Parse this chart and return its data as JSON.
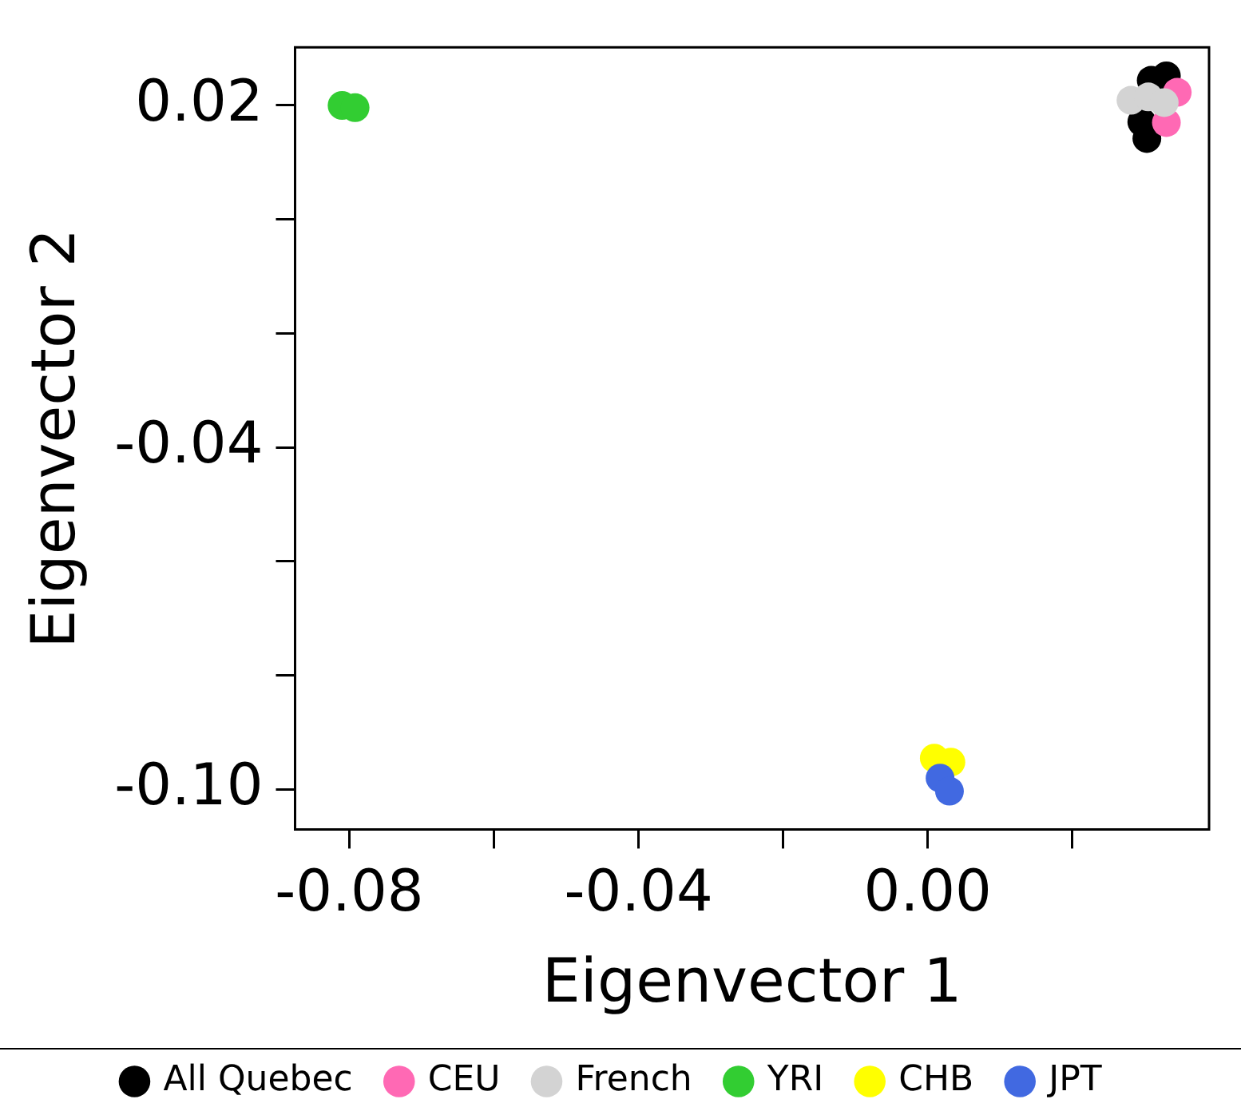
{
  "chart_data": {
    "type": "scatter",
    "xlabel": "Eigenvector 1",
    "ylabel": "Eigenvector 2",
    "marker": "circle",
    "grid": false,
    "legend": "bottom",
    "xlim": [
      -0.0875,
      0.0389
    ],
    "ylim": [
      -0.107,
      0.0302
    ],
    "xticks": [
      -0.08,
      {
        "value": -0.06,
        "label": null
      },
      -0.04,
      {
        "value": -0.02,
        "label": null
      },
      {
        "value": 0,
        "label": "0.00"
      },
      {
        "value": 0.02,
        "label": null
      }
    ],
    "yticks": [
      0.02,
      {
        "value": 0.0,
        "label": null
      },
      {
        "value": -0.02,
        "label": null
      },
      -0.04,
      {
        "value": -0.06,
        "label": null
      },
      {
        "value": -0.08,
        "label": null
      },
      {
        "value": -0.1,
        "label": "-0.10"
      }
    ],
    "series": [
      {
        "name": "All Quebec",
        "color": "#000000",
        "x": [
          0.0303,
          0.0309,
          0.033,
          0.0296
        ],
        "values": [
          0.0142,
          0.0244,
          0.0252,
          0.0171
        ]
      },
      {
        "name": "CEU",
        "color": "#ff69b4",
        "x": [
          0.0345,
          0.033
        ],
        "values": [
          0.0223,
          0.017
        ]
      },
      {
        "name": "French",
        "color": "#d3d3d3",
        "x": [
          0.0281,
          0.0305,
          0.0327
        ],
        "values": [
          0.0209,
          0.0215,
          0.0205
        ]
      },
      {
        "name": "YRI",
        "color": "#32cd32",
        "x": [
          -0.081,
          -0.0792
        ],
        "values": [
          0.02,
          0.0196
        ]
      },
      {
        "name": "CHB",
        "color": "#ffff00",
        "x": [
          0.0009,
          0.0032
        ],
        "values": [
          -0.0945,
          -0.0952
        ]
      },
      {
        "name": "JPT",
        "color": "#4169e1",
        "x": [
          0.0017,
          0.003
        ],
        "values": [
          -0.098,
          -0.1003
        ]
      }
    ]
  }
}
